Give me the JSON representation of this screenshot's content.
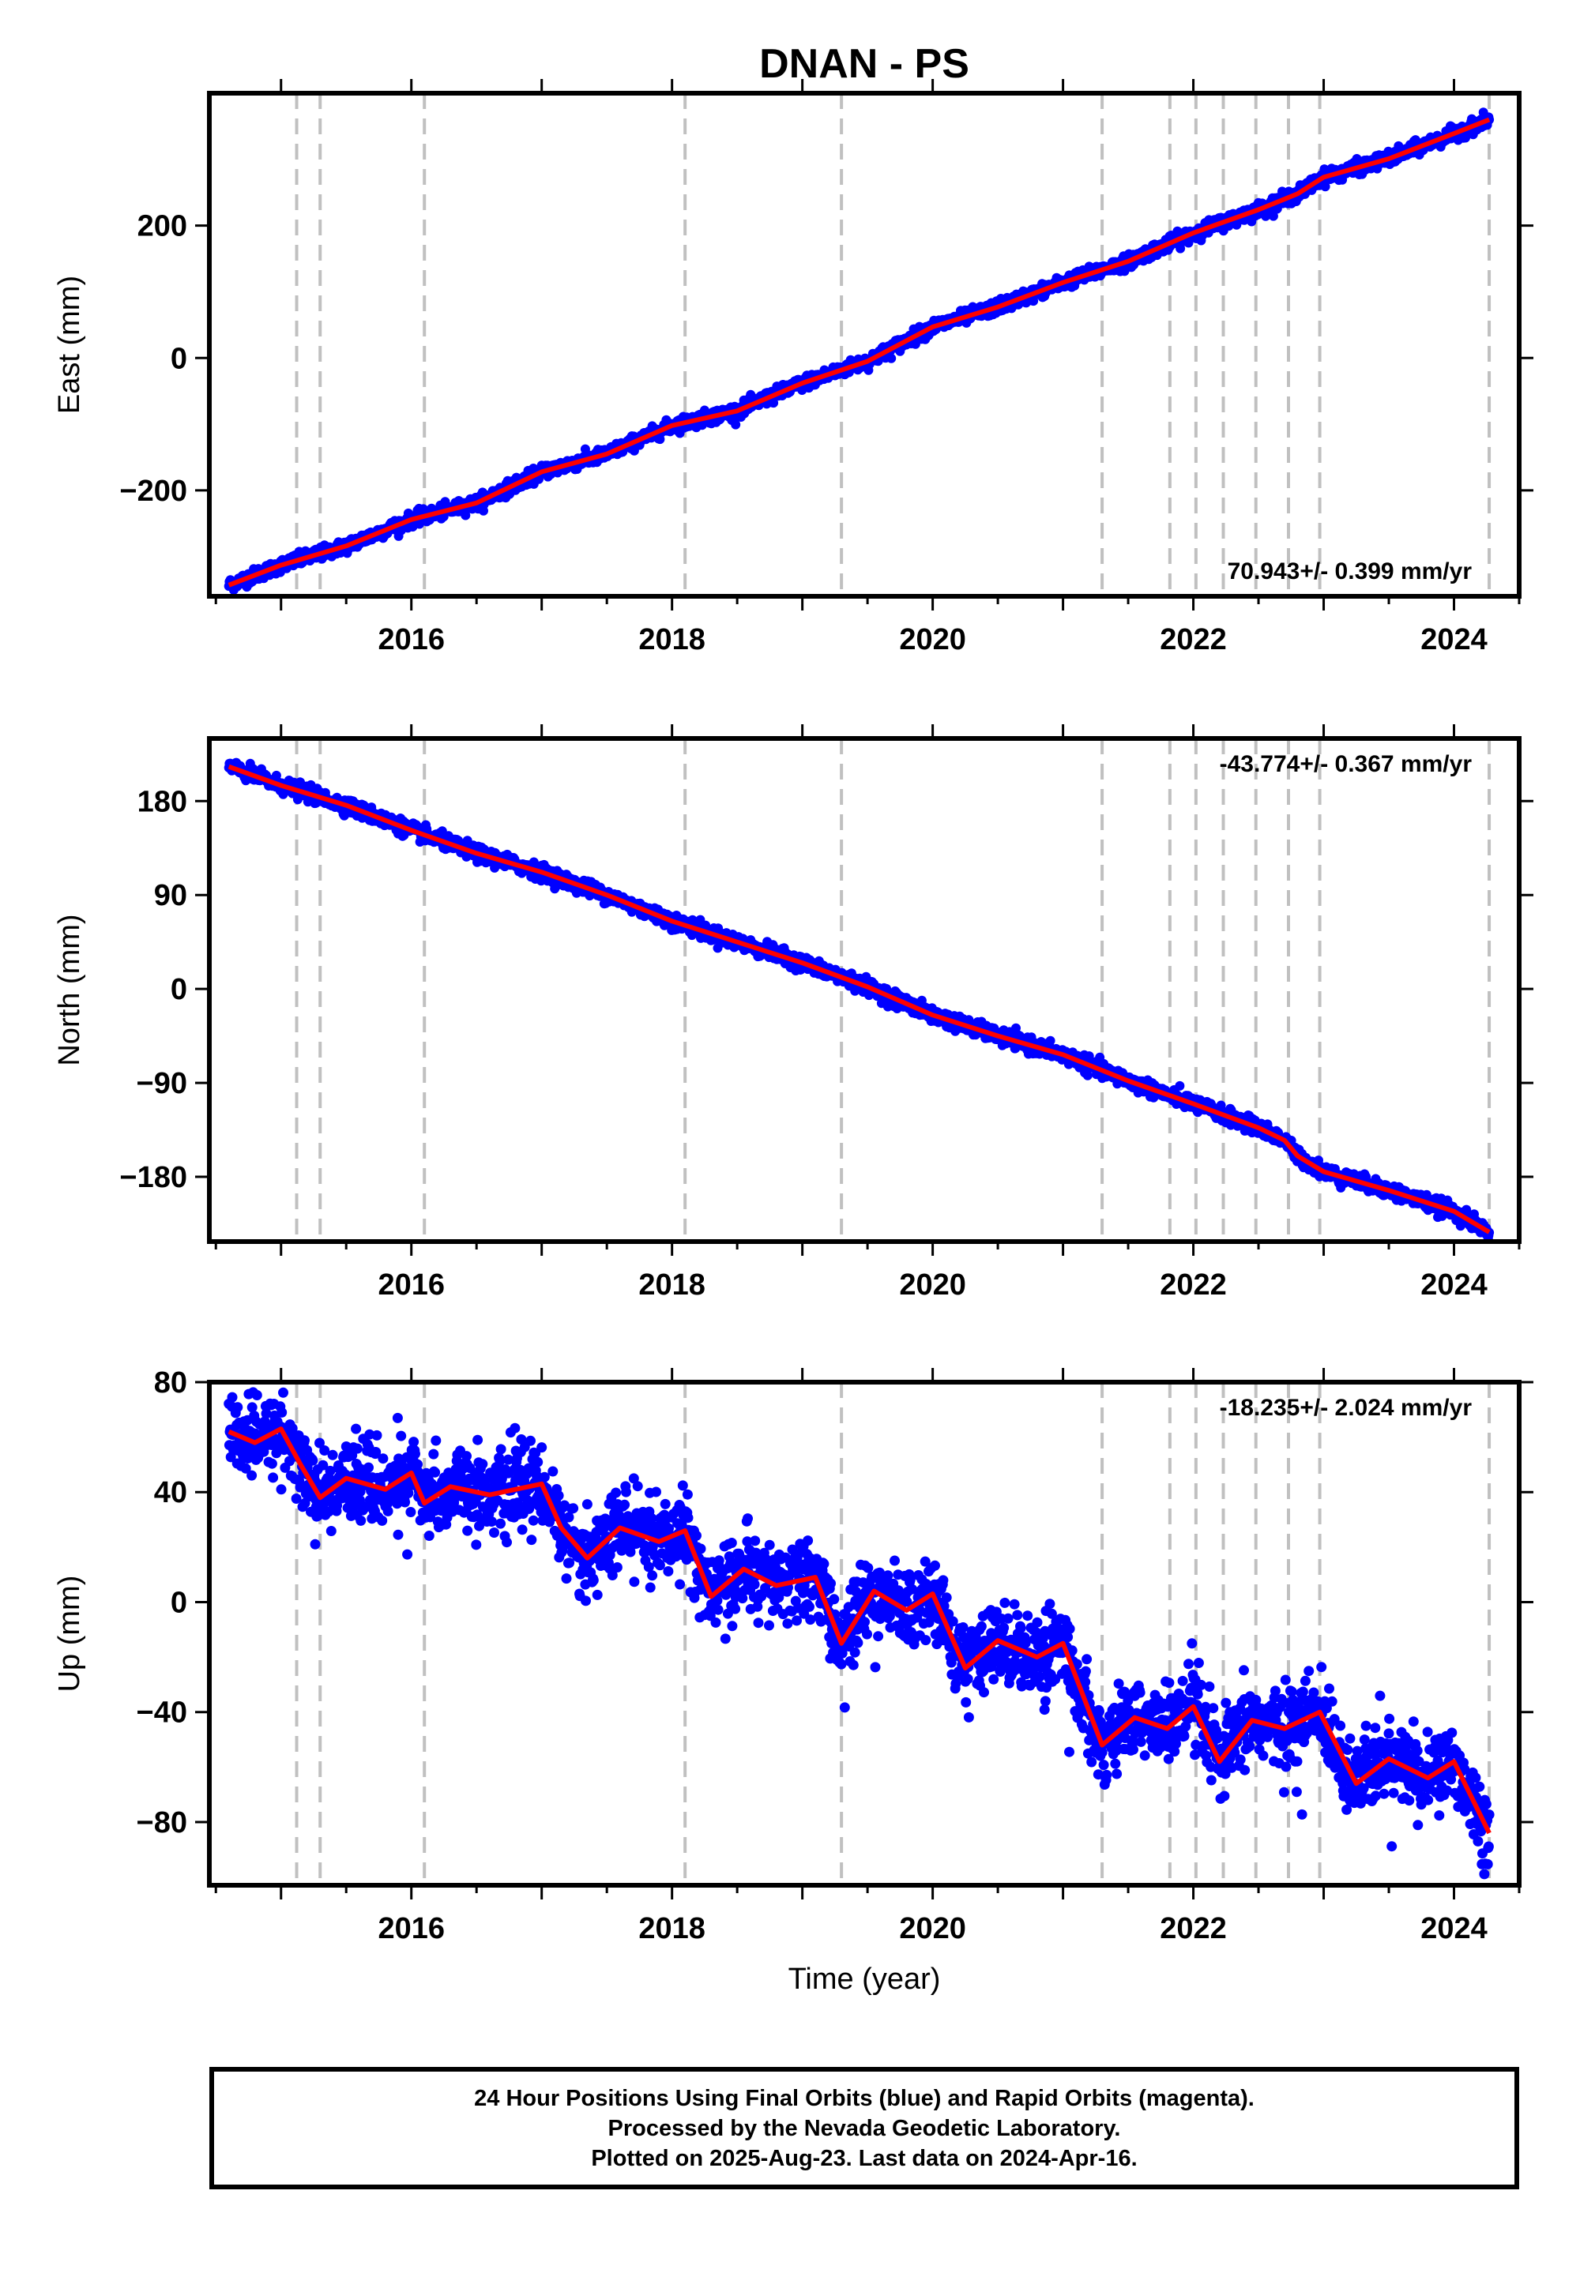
{
  "title": "DNAN - PS",
  "xlabel": "Time (year)",
  "colors": {
    "points": "#0000ff",
    "fit": "#ff0000",
    "events": "#c0c0c0",
    "axes": "#000000"
  },
  "caption": {
    "line1": "24 Hour Positions Using Final Orbits (blue) and Rapid Orbits (magenta).",
    "line2": "Processed by the Nevada Geodetic Laboratory.",
    "line3": "Plotted on 2025-Aug-23. Last data on 2024-Apr-16."
  },
  "chart_data": [
    {
      "type": "scatter",
      "component": "East",
      "ylabel": "East (mm)",
      "rate_label": "70.943+/- 0.399 mm/yr",
      "xlim": [
        2014.45,
        2024.5
      ],
      "ylim": [
        -360,
        400
      ],
      "xticks": [
        2016,
        2018,
        2020,
        2022,
        2024
      ],
      "yticks": [
        -200,
        0,
        200
      ],
      "event_lines": [
        2015.12,
        2015.3,
        2016.1,
        2018.1,
        2019.3,
        2021.3,
        2021.82,
        2022.02,
        2022.23,
        2022.48,
        2022.73,
        2022.97,
        2024.27
      ],
      "fit": [
        [
          2014.6,
          -343
        ],
        [
          2015.0,
          -313
        ],
        [
          2015.5,
          -284
        ],
        [
          2016.0,
          -244
        ],
        [
          2016.5,
          -219
        ],
        [
          2017.0,
          -172
        ],
        [
          2017.5,
          -145
        ],
        [
          2018.0,
          -102
        ],
        [
          2018.5,
          -80
        ],
        [
          2019.0,
          -38
        ],
        [
          2019.5,
          -5
        ],
        [
          2020.0,
          47
        ],
        [
          2020.5,
          77
        ],
        [
          2021.0,
          114
        ],
        [
          2021.5,
          146
        ],
        [
          2022.0,
          189
        ],
        [
          2022.5,
          224
        ],
        [
          2022.8,
          248
        ],
        [
          2023.0,
          273
        ],
        [
          2023.5,
          301
        ],
        [
          2024.0,
          339
        ],
        [
          2024.27,
          360
        ]
      ],
      "scatter_sd": 5
    },
    {
      "type": "scatter",
      "component": "North",
      "ylabel": "North (mm)",
      "rate_label": "-43.774+/- 0.367 mm/yr",
      "xlim": [
        2014.45,
        2024.5
      ],
      "ylim": [
        -242,
        240
      ],
      "xticks": [
        2016,
        2018,
        2020,
        2022,
        2024
      ],
      "yticks": [
        -180,
        -90,
        0,
        90,
        180
      ],
      "event_lines": [
        2015.12,
        2015.3,
        2016.1,
        2018.1,
        2019.3,
        2021.3,
        2021.82,
        2022.02,
        2022.23,
        2022.48,
        2022.73,
        2022.97,
        2024.27
      ],
      "fit": [
        [
          2014.6,
          213
        ],
        [
          2015.0,
          195
        ],
        [
          2015.5,
          176
        ],
        [
          2016.0,
          152
        ],
        [
          2016.5,
          130
        ],
        [
          2017.0,
          112
        ],
        [
          2017.5,
          90
        ],
        [
          2018.0,
          65
        ],
        [
          2018.5,
          45
        ],
        [
          2019.0,
          25
        ],
        [
          2019.5,
          2
        ],
        [
          2020.0,
          -25
        ],
        [
          2020.5,
          -45
        ],
        [
          2021.0,
          -63
        ],
        [
          2021.5,
          -88
        ],
        [
          2022.0,
          -110
        ],
        [
          2022.5,
          -133
        ],
        [
          2022.7,
          -145
        ],
        [
          2022.8,
          -160
        ],
        [
          2023.0,
          -175
        ],
        [
          2023.5,
          -193
        ],
        [
          2024.0,
          -213
        ],
        [
          2024.27,
          -233
        ]
      ],
      "scatter_sd": 3.5
    },
    {
      "type": "scatter",
      "component": "Up",
      "ylabel": "Up (mm)",
      "rate_label": "-18.235+/- 2.024 mm/yr",
      "xlim": [
        2014.45,
        2024.5
      ],
      "ylim": [
        -103,
        80
      ],
      "xticks": [
        2016,
        2018,
        2020,
        2022,
        2024
      ],
      "yticks": [
        -80,
        -40,
        0,
        40,
        80
      ],
      "event_lines": [
        2015.12,
        2015.3,
        2016.1,
        2018.1,
        2019.3,
        2021.3,
        2021.82,
        2022.02,
        2022.23,
        2022.48,
        2022.73,
        2022.97,
        2024.27
      ],
      "fit": [
        [
          2014.6,
          62
        ],
        [
          2014.8,
          58
        ],
        [
          2015.0,
          63
        ],
        [
          2015.15,
          50
        ],
        [
          2015.3,
          38
        ],
        [
          2015.5,
          45
        ],
        [
          2015.8,
          41
        ],
        [
          2016.0,
          47
        ],
        [
          2016.1,
          36
        ],
        [
          2016.3,
          42
        ],
        [
          2016.6,
          39
        ],
        [
          2017.0,
          43
        ],
        [
          2017.15,
          27
        ],
        [
          2017.35,
          16
        ],
        [
          2017.6,
          27
        ],
        [
          2017.9,
          22
        ],
        [
          2018.1,
          26
        ],
        [
          2018.3,
          2
        ],
        [
          2018.55,
          12
        ],
        [
          2018.8,
          6
        ],
        [
          2019.1,
          9
        ],
        [
          2019.3,
          -15
        ],
        [
          2019.55,
          4
        ],
        [
          2019.8,
          -3
        ],
        [
          2020.0,
          3
        ],
        [
          2020.25,
          -24
        ],
        [
          2020.5,
          -14
        ],
        [
          2020.8,
          -20
        ],
        [
          2021.0,
          -15
        ],
        [
          2021.3,
          -52
        ],
        [
          2021.55,
          -42
        ],
        [
          2021.8,
          -46
        ],
        [
          2022.0,
          -38
        ],
        [
          2022.2,
          -58
        ],
        [
          2022.45,
          -43
        ],
        [
          2022.7,
          -46
        ],
        [
          2022.97,
          -40
        ],
        [
          2023.25,
          -66
        ],
        [
          2023.5,
          -57
        ],
        [
          2023.8,
          -64
        ],
        [
          2024.0,
          -58
        ],
        [
          2024.27,
          -84
        ]
      ],
      "scatter_sd": 7
    }
  ]
}
